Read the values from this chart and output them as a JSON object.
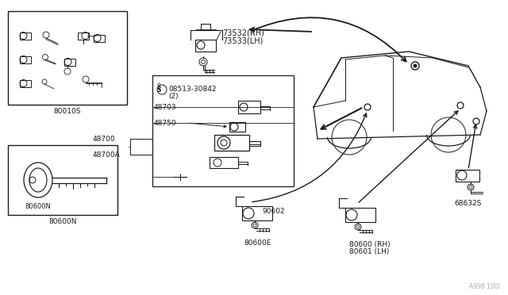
{
  "bg_color": "#ffffff",
  "line_color": "#1a1a1a",
  "text_color": "#1a1a1a",
  "fig_width": 6.4,
  "fig_height": 3.72,
  "dpi": 100,
  "watermark": "A998 100/",
  "label_80010S": "80010S",
  "label_80600N": "80600N",
  "label_73532": "73532(RH)",
  "label_73533": "73533(LH)",
  "label_08513": "08513-30842",
  "label_08513b": "(2)",
  "label_48703": "48703",
  "label_48750": "48750",
  "label_48700": "48700",
  "label_48700A": "48700A",
  "label_90602": "90602",
  "label_80600E": "80600E",
  "label_80600": "80600 (RH)",
  "label_80601": "80601 (LH)",
  "label_68632S": "68632S"
}
